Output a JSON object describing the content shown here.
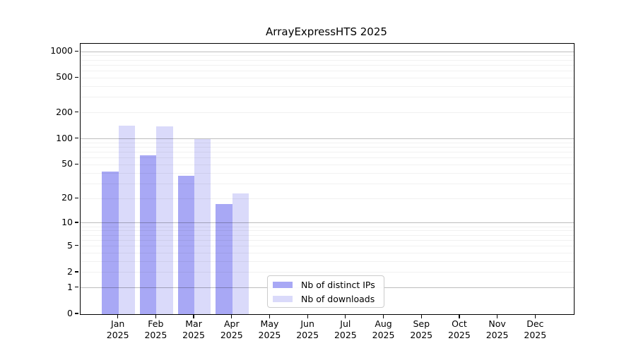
{
  "chart_data": {
    "type": "bar",
    "title": "ArrayExpressHTS 2025",
    "categories": [
      "Jan 2025",
      "Feb 2025",
      "Mar 2025",
      "Apr 2025",
      "May 2025",
      "Jun 2025",
      "Jul 2025",
      "Aug 2025",
      "Sep 2025",
      "Oct 2025",
      "Nov 2025",
      "Dec 2025"
    ],
    "x_tick_months": [
      "Jan",
      "Feb",
      "Mar",
      "Apr",
      "May",
      "Jun",
      "Jul",
      "Aug",
      "Sep",
      "Oct",
      "Nov",
      "Dec"
    ],
    "x_tick_year": "2025",
    "series": [
      {
        "name": "Nb of distinct IPs",
        "color": "#a8a8f5",
        "values": [
          42,
          64,
          37,
          17,
          0,
          0,
          0,
          0,
          0,
          0,
          0,
          0
        ]
      },
      {
        "name": "Nb of downloads",
        "color": "#dadafa",
        "values": [
          141,
          139,
          100,
          23,
          0,
          0,
          0,
          0,
          0,
          0,
          0,
          0
        ]
      }
    ],
    "y_axis": {
      "scale": "log1p",
      "tick_values": [
        1000,
        500,
        200,
        100,
        50,
        20,
        10,
        5,
        2,
        1,
        0
      ],
      "major_grid_values": [
        1,
        10,
        100,
        1000
      ],
      "range": [
        0,
        1000
      ]
    },
    "grid": true,
    "legend_position": "bottom-center-inside"
  },
  "colors": {
    "background": "#ffffff",
    "axis_line": "#000000",
    "text": "#000000",
    "legend_border": "#cccccc",
    "bar_distinct_ips": "#a8a8f5",
    "bar_downloads": "#dadafa"
  }
}
